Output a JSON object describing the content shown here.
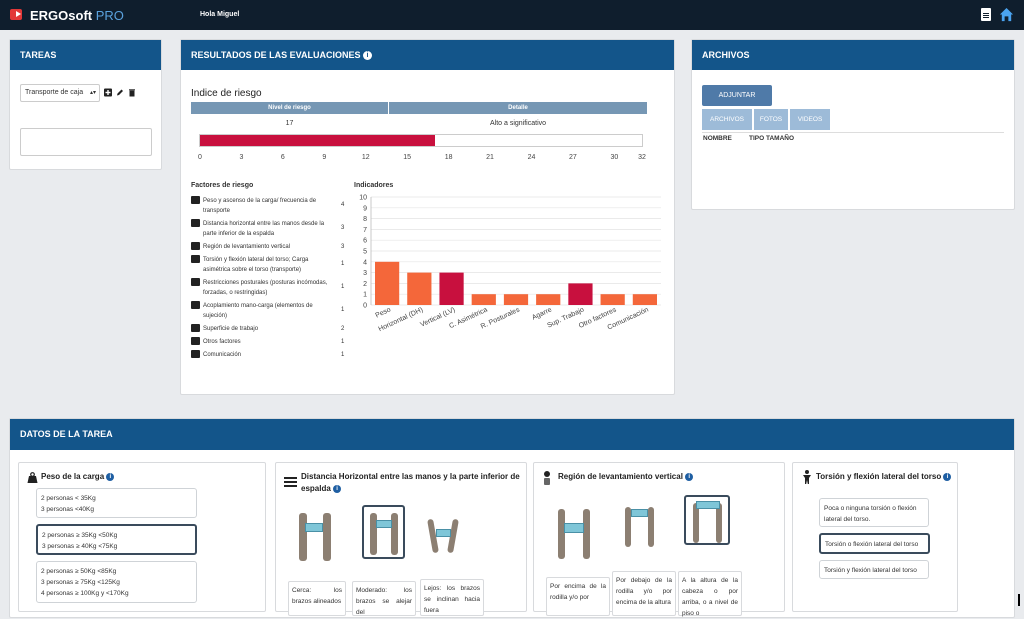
{
  "app": {
    "brand": "ERGOsoft",
    "brand_suffix": "PRO",
    "greeting": "Hola Miguel",
    "icons": {
      "logo": "exit-arrow-icon",
      "doc": "document-icon",
      "home": "home-icon"
    }
  },
  "tareas": {
    "title": "TAREAS",
    "selected": "Transporte de caja",
    "actions": [
      "add-icon",
      "edit-icon",
      "delete-icon"
    ],
    "textarea_value": ""
  },
  "resultados": {
    "title": "RESULTADOS DE LAS EVALUACIONES",
    "index_title": "Indice de riesgo",
    "headers": [
      "Nivel de riesgo",
      "Detalle"
    ],
    "nivel": "17",
    "detalle": "Alto a significativo",
    "progress_value": 17,
    "progress_max": 32,
    "ticks": [
      "0",
      "3",
      "6",
      "9",
      "12",
      "15",
      "18",
      "21",
      "24",
      "27",
      "30",
      "32"
    ],
    "factores_label": "Factores de riesgo",
    "indicadores_label": "Indicadores",
    "factores": [
      {
        "icon": "weight-icon",
        "label": "Peso y ascenso de la carga/ frecuencia de transporte",
        "value": "4"
      },
      {
        "icon": "distance-icon",
        "label": "Distancia horizontal entre las manos desde la parte inferior de la espalda",
        "value": "3"
      },
      {
        "icon": "vertical-icon",
        "label": "Región de levantamiento vertical",
        "value": "3"
      },
      {
        "icon": "torsion-icon",
        "label": "Torsión y flexión lateral del torso; Carga asimétrica sobre el torso (transporte)",
        "value": "1"
      },
      {
        "icon": "posture-icon",
        "label": "Restricciones posturales (posturas incómodas, forzadas, o restringidas)",
        "value": "1"
      },
      {
        "icon": "grip-icon",
        "label": "Acoplamiento mano-carga (elementos de sujeción)",
        "value": "1"
      },
      {
        "icon": "surface-icon",
        "label": "Superficie de trabajo",
        "value": "2"
      },
      {
        "icon": "other-icon",
        "label": "Otros factores",
        "value": "1"
      },
      {
        "icon": "communication-icon",
        "label": "Comunicación",
        "value": "1"
      }
    ]
  },
  "chart_data": {
    "type": "bar",
    "title": "Indicadores",
    "categories": [
      "Peso",
      "Horizontal (DH)",
      "Vertical (LV)",
      "C. Asimétrica",
      "R. Posturales",
      "Agarre",
      "Sup. Trabajo",
      "Otro factores",
      "Comunicación"
    ],
    "values": [
      4,
      3,
      3,
      1,
      1,
      1,
      2,
      1,
      1
    ],
    "colors": [
      "#f4673a",
      "#f4673a",
      "#c8103e",
      "#f4673a",
      "#f4673a",
      "#f4673a",
      "#c8103e",
      "#f4673a",
      "#f4673a"
    ],
    "ylim": [
      0,
      10
    ],
    "yticks": [
      "0",
      "1",
      "2",
      "3",
      "4",
      "5",
      "6",
      "7",
      "8",
      "9",
      "10"
    ],
    "grid": true
  },
  "archivos": {
    "title": "ARCHIVOS",
    "upload_button": "ADJUNTAR ARCHIVO",
    "tabs": [
      "ARCHIVOS",
      "FOTOS",
      "VIDEOS"
    ],
    "columns": [
      "NOMBRE",
      "TIPO TAMAÑO"
    ]
  },
  "datos": {
    "title": "DATOS DE LA TAREA",
    "peso": {
      "title": "Peso de la carga",
      "options": [
        "2 personas < 35Kg\n3 personas <40Kg",
        "2 personas ≥ 35Kg <50Kg\n3 personas ≥ 40Kg <75Kg",
        "2 personas ≥ 50Kg <85Kg\n3 personas ≥ 75Kg <125Kg\n4 personas ≥ 100Kg y <170Kg"
      ]
    },
    "distancia": {
      "title": "Distancia Horizontal entre las manos y la parte inferior de espalda",
      "desc": [
        "Cerca: los brazos alineados",
        "Moderado: los brazos se alejar del",
        "Lejos: los brazos se inclinan hacia fuera"
      ]
    },
    "region": {
      "title": "Región de levantamiento vertical",
      "desc": [
        "Por encima de la rodilla y/o por",
        "Por debajo de la rodilla y/o por encima de la altura",
        "A la altura de la cabeza o por arriba, o a nivel de piso o"
      ]
    },
    "torsion": {
      "title": "Torsión y flexión lateral del torso",
      "options": [
        "Poca o ninguna torsión o flexión lateral del torso.",
        "Torsión o flexión lateral del torso",
        "Torsión y flexión lateral del torso"
      ]
    }
  }
}
